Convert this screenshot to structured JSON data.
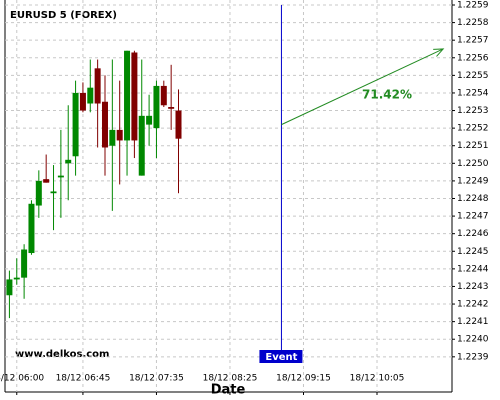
{
  "chart_data": {
    "type": "candlestick",
    "title": "EURUSD 5 (FOREX)",
    "x_label": "Date",
    "watermark": "www.delkos.com",
    "x": [
      355,
      360,
      365,
      370,
      375,
      380,
      385,
      390,
      395,
      400,
      405,
      410,
      415,
      420,
      425,
      430,
      435,
      440,
      445,
      450,
      455,
      460,
      465,
      470
    ],
    "open": [
      1.22425,
      1.22434,
      1.22435,
      1.22449,
      1.22476,
      1.22491,
      1.22483,
      1.22492,
      1.225,
      1.22504,
      1.2254,
      1.22534,
      1.22554,
      1.22535,
      1.2251,
      1.22519,
      1.22513,
      1.22563,
      1.22493,
      1.22522,
      1.2252,
      1.22544,
      1.22532,
      1.2253
    ],
    "high": [
      1.22439,
      1.22446,
      1.22454,
      1.22479,
      1.22496,
      1.22505,
      1.22499,
      1.22519,
      1.22533,
      1.22547,
      1.22546,
      1.22559,
      1.22559,
      1.2255,
      1.22559,
      1.22547,
      1.22564,
      1.22564,
      1.22559,
      1.22539,
      1.22547,
      1.22547,
      1.22556,
      1.22542
    ],
    "low": [
      1.22412,
      1.22431,
      1.22423,
      1.22448,
      1.22469,
      1.22489,
      1.22462,
      1.22469,
      1.22479,
      1.22493,
      1.22529,
      1.22529,
      1.22509,
      1.22493,
      1.22473,
      1.22488,
      1.22493,
      1.22503,
      1.22493,
      1.2251,
      1.22503,
      1.22532,
      1.22519,
      1.22483
    ],
    "close": [
      1.22434,
      1.22435,
      1.22451,
      1.22477,
      1.2249,
      1.22489,
      1.22484,
      1.22493,
      1.22502,
      1.2254,
      1.2253,
      1.22543,
      1.22534,
      1.22509,
      1.22519,
      1.22513,
      1.22564,
      1.22513,
      1.22527,
      1.22527,
      1.22544,
      1.22533,
      1.22531,
      1.22514
    ],
    "up_color": "#008800",
    "down_color": "#800000",
    "xlim": [
      352,
      656
    ],
    "xticks": [
      {
        "value": 360,
        "label": "18/12 06:00"
      },
      {
        "value": 405,
        "label": "18/12 06:45"
      },
      {
        "value": 455,
        "label": "18/12 07:35"
      },
      {
        "value": 505,
        "label": "18/12 08:25"
      },
      {
        "value": 555,
        "label": "18/12 09:15"
      },
      {
        "value": 605,
        "label": "18/12 10:05"
      }
    ],
    "ylim": [
      1.2237,
      1.2259
    ],
    "yticks": [
      1.2239,
      {
        "value": 1.224,
        "label": "1.2240"
      },
      1.2241,
      1.2242,
      1.2243,
      1.2244,
      1.2245,
      1.2246,
      1.2247,
      1.2248,
      1.2249,
      {
        "value": 1.225,
        "label": "1.2250"
      },
      1.2251,
      1.2252,
      1.2253,
      1.2254,
      1.2255,
      1.2256,
      1.2257,
      1.2258,
      1.2259
    ],
    "grid": true,
    "event": {
      "label": "Event",
      "x": 540,
      "color": "#0000cc"
    },
    "forecast": {
      "label": "71.42%",
      "x": [
        540,
        650
      ],
      "y": [
        1.22522,
        1.22565
      ],
      "color": "#228b22"
    }
  }
}
